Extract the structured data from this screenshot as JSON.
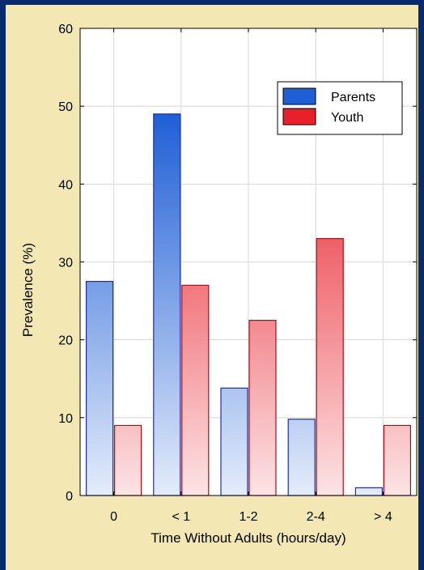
{
  "chart_data": {
    "type": "bar",
    "categories": [
      "0",
      "< 1",
      "1-2",
      "2-4",
      "> 4"
    ],
    "series": [
      {
        "name": "Parents",
        "values": [
          27.5,
          49,
          13.8,
          9.8,
          1
        ],
        "color": "#1f5fd6"
      },
      {
        "name": "Youth",
        "values": [
          9,
          27,
          22.5,
          33,
          9
        ],
        "color": "#e8202a"
      }
    ],
    "xlabel": "Time Without Adults (hours/day)",
    "ylabel": "Prevalence (%)",
    "ylim": [
      0,
      60
    ],
    "yticks": [
      "0",
      "10",
      "20",
      "30",
      "40",
      "50",
      "60"
    ],
    "grid": true,
    "legend_position": "top-right",
    "colors": {
      "background": "#f3e7b3",
      "frame": "#0a2a6e",
      "plot_background": "#ffffff",
      "grid": "#d8d8d8"
    }
  }
}
